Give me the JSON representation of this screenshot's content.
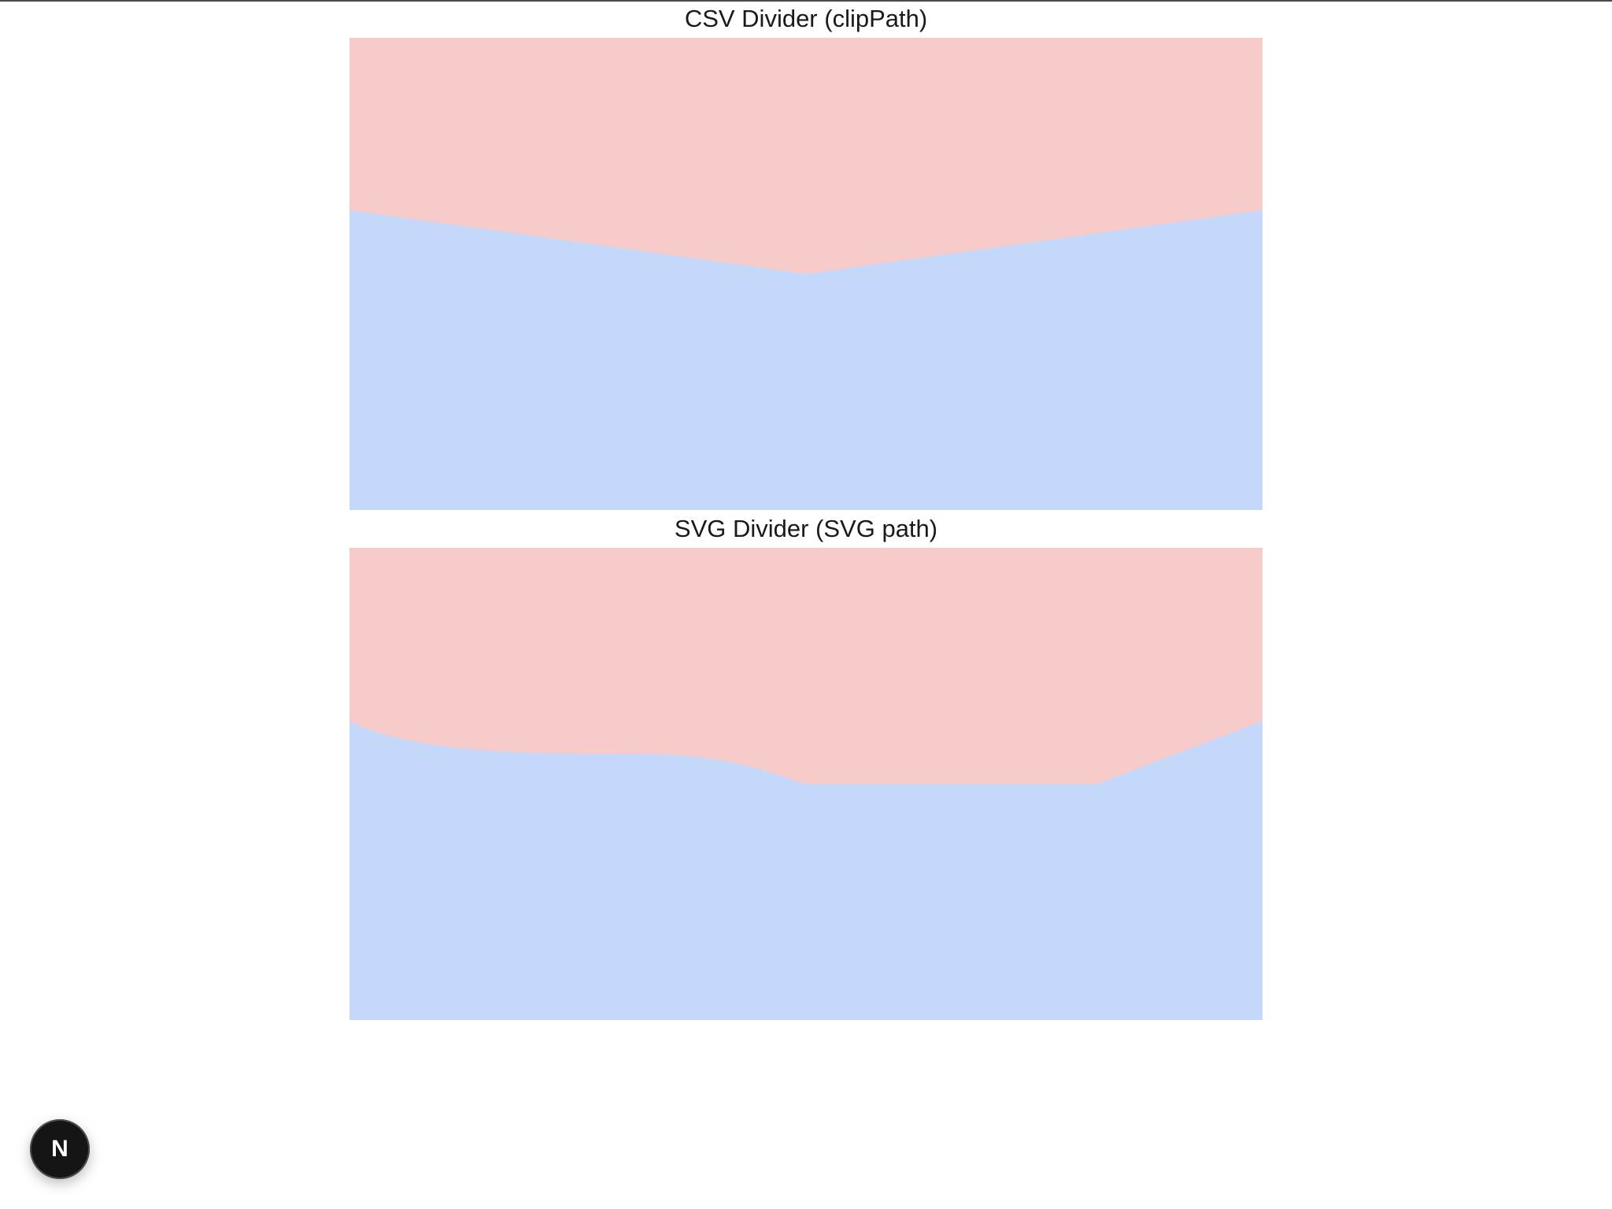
{
  "headings": {
    "css_divider": "CSV Divider (clipPath)",
    "svg_divider": "SVG Divider (SVG path)"
  },
  "colors": {
    "top_fill": "#f8cbcb",
    "bottom_fill": "#c4d9fa",
    "badge_bg": "#151515",
    "badge_fg": "#ffffff"
  },
  "badge": {
    "glyph": "N",
    "icon": "nextjs-logo-icon"
  }
}
